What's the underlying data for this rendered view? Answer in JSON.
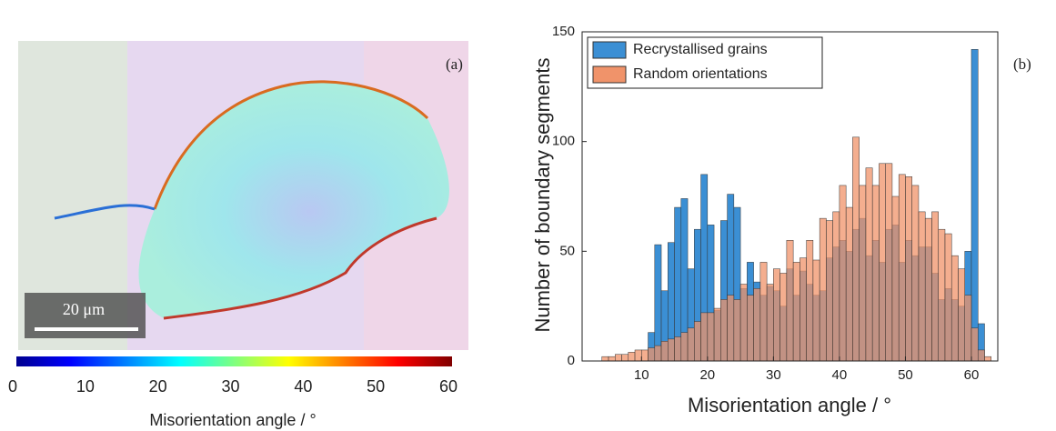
{
  "chart_data": [
    {
      "type": "colorbar",
      "label": "(a)",
      "scale_bar": "20 μm",
      "xlabel": "Misorientation angle / °",
      "xlim": [
        0,
        60
      ],
      "xticks": [
        0,
        10,
        20,
        30,
        40,
        50,
        60
      ]
    },
    {
      "type": "histogram",
      "label": "(b)",
      "xlabel": "Misorientation angle / °",
      "ylabel": "Number of boundary segments",
      "bins": [
        4,
        5,
        6,
        7,
        8,
        9,
        10,
        11,
        12,
        13,
        14,
        15,
        16,
        17,
        18,
        19,
        20,
        21,
        22,
        23,
        24,
        25,
        26,
        27,
        28,
        29,
        30,
        31,
        32,
        33,
        34,
        35,
        36,
        37,
        38,
        39,
        40,
        41,
        42,
        43,
        44,
        45,
        46,
        47,
        48,
        49,
        50,
        51,
        52,
        53,
        54,
        55,
        56,
        57,
        58,
        59,
        60,
        61,
        62,
        63
      ],
      "series": [
        {
          "name": "Recrystallised grains",
          "color": "#3b8fd4",
          "values": [
            0,
            0,
            0,
            0,
            0,
            0,
            0,
            13,
            53,
            32,
            54,
            70,
            74,
            42,
            60,
            85,
            62,
            23,
            64,
            76,
            70,
            33,
            45,
            36,
            30,
            34,
            32,
            25,
            42,
            30,
            41,
            35,
            30,
            32,
            47,
            52,
            55,
            50,
            60,
            65,
            48,
            55,
            45,
            60,
            62,
            45,
            55,
            48,
            52,
            52,
            40,
            28,
            33,
            28,
            25,
            50,
            142,
            17,
            0
          ]
        },
        {
          "name": "Random orientations",
          "color": "#f0936a",
          "values": [
            2,
            2,
            3,
            3,
            4,
            5,
            5,
            6,
            7,
            9,
            10,
            11,
            13,
            15,
            18,
            22,
            22,
            24,
            28,
            30,
            28,
            35,
            30,
            33,
            45,
            35,
            42,
            40,
            55,
            45,
            47,
            55,
            46,
            65,
            64,
            68,
            80,
            70,
            102,
            80,
            88,
            80,
            90,
            90,
            75,
            85,
            84,
            80,
            68,
            65,
            68,
            60,
            58,
            48,
            42,
            30,
            15,
            5,
            2
          ]
        }
      ],
      "xlim": [
        1,
        64
      ],
      "xticks": [
        10,
        20,
        30,
        40,
        50,
        60
      ],
      "ylim": [
        0,
        150
      ],
      "yticks": [
        0,
        50,
        100,
        150
      ],
      "legend": "upper-left"
    }
  ]
}
